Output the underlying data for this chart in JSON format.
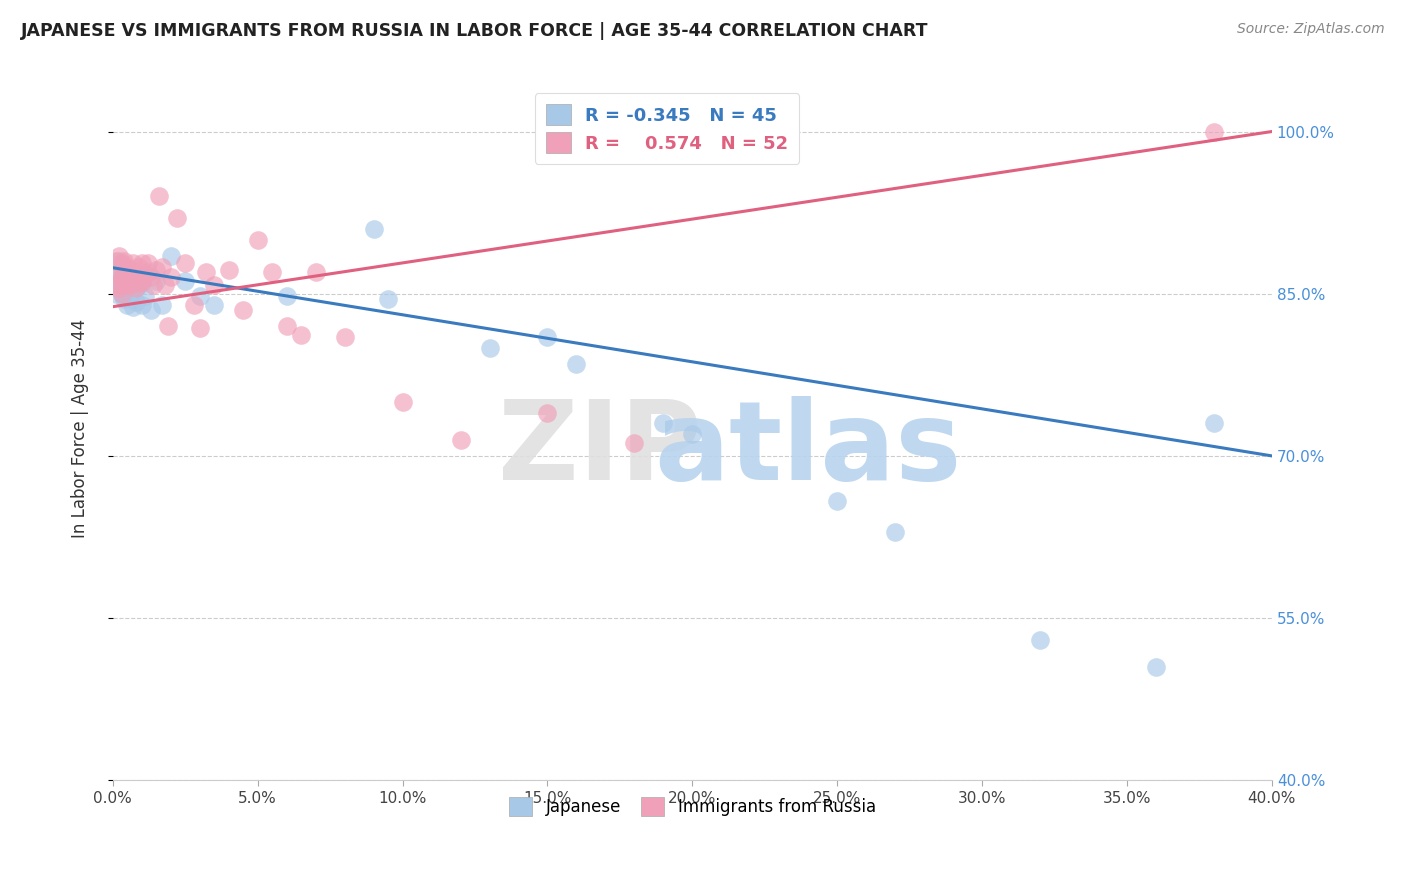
{
  "title": "JAPANESE VS IMMIGRANTS FROM RUSSIA IN LABOR FORCE | AGE 35-44 CORRELATION CHART",
  "source": "Source: ZipAtlas.com",
  "ylabel": "In Labor Force | Age 35-44",
  "xlim": [
    0.0,
    0.4
  ],
  "ylim": [
    0.4,
    1.05
  ],
  "xticks": [
    0.0,
    0.05,
    0.1,
    0.15,
    0.2,
    0.25,
    0.3,
    0.35,
    0.4
  ],
  "yticks": [
    0.4,
    0.55,
    0.7,
    0.85,
    1.0
  ],
  "ytick_labels_left": [
    "",
    "",
    "",
    "",
    ""
  ],
  "ytick_labels_right": [
    "40.0%",
    "55.0%",
    "70.0%",
    "85.0%",
    "100.0%"
  ],
  "xtick_labels": [
    "0.0%",
    "5.0%",
    "10.0%",
    "15.0%",
    "20.0%",
    "25.0%",
    "30.0%",
    "35.0%",
    "40.0%"
  ],
  "blue_color": "#a8c8e8",
  "pink_color": "#f0a0b8",
  "blue_line_color": "#3a7abf",
  "pink_line_color": "#e06080",
  "tick_color_right": "#4a90d9",
  "legend_label_blue": "Japanese",
  "legend_label_pink": "Immigrants from Russia",
  "blue_x": [
    0.001,
    0.001,
    0.002,
    0.002,
    0.002,
    0.003,
    0.003,
    0.003,
    0.004,
    0.004,
    0.004,
    0.005,
    0.005,
    0.005,
    0.006,
    0.006,
    0.007,
    0.007,
    0.008,
    0.008,
    0.009,
    0.01,
    0.01,
    0.011,
    0.012,
    0.013,
    0.015,
    0.017,
    0.02,
    0.025,
    0.03,
    0.035,
    0.06,
    0.09,
    0.095,
    0.13,
    0.15,
    0.16,
    0.19,
    0.2,
    0.25,
    0.27,
    0.32,
    0.36,
    0.38
  ],
  "blue_y": [
    0.87,
    0.85,
    0.88,
    0.86,
    0.855,
    0.875,
    0.865,
    0.85,
    0.87,
    0.858,
    0.845,
    0.862,
    0.853,
    0.84,
    0.865,
    0.848,
    0.86,
    0.838,
    0.855,
    0.842,
    0.858,
    0.86,
    0.84,
    0.848,
    0.87,
    0.835,
    0.862,
    0.84,
    0.885,
    0.862,
    0.848,
    0.84,
    0.848,
    0.91,
    0.845,
    0.8,
    0.81,
    0.785,
    0.73,
    0.72,
    0.658,
    0.63,
    0.53,
    0.505,
    0.73
  ],
  "pink_x": [
    0.001,
    0.001,
    0.002,
    0.002,
    0.002,
    0.003,
    0.003,
    0.003,
    0.004,
    0.004,
    0.004,
    0.005,
    0.005,
    0.006,
    0.006,
    0.007,
    0.007,
    0.008,
    0.008,
    0.009,
    0.009,
    0.01,
    0.01,
    0.011,
    0.012,
    0.013,
    0.014,
    0.015,
    0.016,
    0.017,
    0.018,
    0.019,
    0.02,
    0.022,
    0.025,
    0.028,
    0.03,
    0.032,
    0.035,
    0.04,
    0.045,
    0.05,
    0.055,
    0.06,
    0.065,
    0.07,
    0.08,
    0.1,
    0.12,
    0.15,
    0.18,
    0.38
  ],
  "pink_y": [
    0.88,
    0.858,
    0.885,
    0.868,
    0.855,
    0.878,
    0.865,
    0.85,
    0.88,
    0.87,
    0.858,
    0.875,
    0.86,
    0.872,
    0.858,
    0.878,
    0.865,
    0.87,
    0.855,
    0.875,
    0.86,
    0.878,
    0.862,
    0.868,
    0.878,
    0.865,
    0.858,
    0.872,
    0.94,
    0.875,
    0.858,
    0.82,
    0.865,
    0.92,
    0.878,
    0.84,
    0.818,
    0.87,
    0.858,
    0.872,
    0.835,
    0.9,
    0.87,
    0.82,
    0.812,
    0.87,
    0.81,
    0.75,
    0.715,
    0.74,
    0.712,
    1.0
  ],
  "blue_trend_x": [
    0.0,
    0.4
  ],
  "blue_trend_y": [
    0.874,
    0.7
  ],
  "pink_trend_x": [
    0.0,
    0.4
  ],
  "pink_trend_y": [
    0.838,
    1.0
  ]
}
